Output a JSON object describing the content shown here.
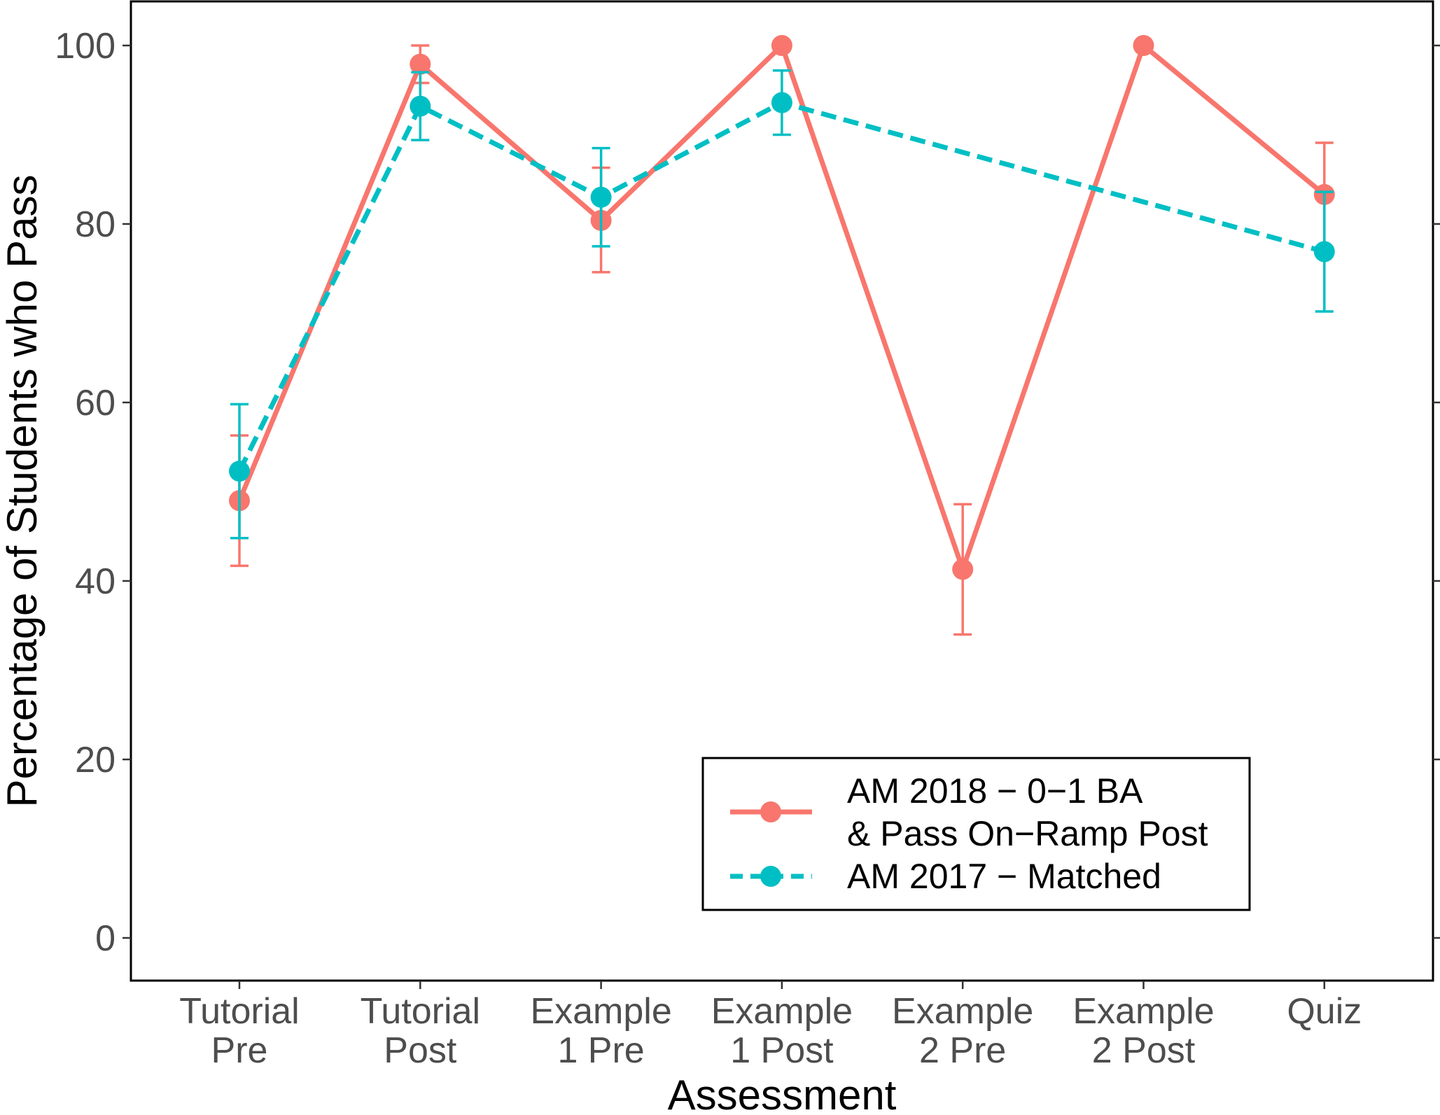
{
  "chart_data": {
    "type": "line",
    "xlabel": "Assessment",
    "ylabel": "Percentage of Students who Pass",
    "ylim": [
      0,
      100
    ],
    "yticks": [
      0,
      20,
      40,
      60,
      80,
      100
    ],
    "categories": [
      [
        "Tutorial",
        "Pre"
      ],
      [
        "Tutorial",
        "Post"
      ],
      [
        "Example",
        "1 Pre"
      ],
      [
        "Example",
        "1 Post"
      ],
      [
        "Example",
        "2 Pre"
      ],
      [
        "Example",
        "2 Post"
      ],
      [
        "Quiz"
      ]
    ],
    "grid": false,
    "legend_position": "bottom-right",
    "series": [
      {
        "name": [
          "AM 2018 − 0−1 BA",
          "& Pass On−Ramp Post"
        ],
        "color": "#F8766D",
        "line_style": "solid",
        "points": [
          {
            "x": 1,
            "y": 49,
            "lo": 41.7,
            "hi": 56.3
          },
          {
            "x": 2,
            "y": 97.9,
            "lo": 95.8,
            "hi": 100
          },
          {
            "x": 3,
            "y": 80.4,
            "lo": 74.6,
            "hi": 86.3
          },
          {
            "x": 4,
            "y": 100,
            "lo": 100,
            "hi": 100
          },
          {
            "x": 5,
            "y": 41.3,
            "lo": 34,
            "hi": 48.6
          },
          {
            "x": 6,
            "y": 100,
            "lo": 100,
            "hi": 100
          },
          {
            "x": 7,
            "y": 83.3,
            "lo": 77.4,
            "hi": 89.1
          }
        ]
      },
      {
        "name": [
          "AM 2017 − Matched"
        ],
        "color": "#00BFC4",
        "line_style": "dashed",
        "points": [
          {
            "x": 1,
            "y": 52.3,
            "lo": 44.8,
            "hi": 59.8
          },
          {
            "x": 2,
            "y": 93.2,
            "lo": 89.4,
            "hi": 97
          },
          {
            "x": 3,
            "y": 83,
            "lo": 77.5,
            "hi": 88.5
          },
          {
            "x": 4,
            "y": 93.6,
            "lo": 90,
            "hi": 97.2
          },
          {
            "x": 7,
            "y": 76.9,
            "lo": 70.2,
            "hi": 83.6
          }
        ]
      }
    ]
  }
}
